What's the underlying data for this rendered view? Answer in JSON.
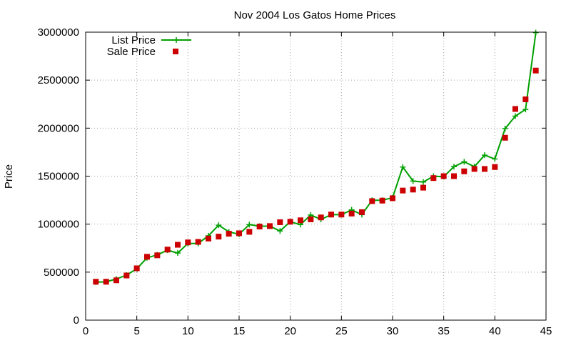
{
  "chart_data": {
    "type": "line",
    "title": "Nov 2004 Los Gatos Home Prices",
    "xlabel": "",
    "ylabel": "Price",
    "xlim": [
      0,
      45
    ],
    "ylim": [
      0,
      3000000
    ],
    "x_ticks": [
      "0",
      "5",
      "10",
      "15",
      "20",
      "25",
      "30",
      "35",
      "40",
      "45"
    ],
    "y_ticks": [
      "0",
      "500000",
      "1000000",
      "1500000",
      "2000000",
      "2500000",
      "3000000"
    ],
    "grid": true,
    "legend_position": "top-left",
    "series": [
      {
        "name": "List Price",
        "style": "line-points",
        "color": "#00a000",
        "x": [
          1,
          2,
          3,
          4,
          5,
          6,
          7,
          8,
          9,
          10,
          11,
          12,
          13,
          14,
          15,
          16,
          17,
          18,
          19,
          20,
          21,
          22,
          23,
          24,
          25,
          26,
          27,
          28,
          29,
          30,
          31,
          32,
          33,
          34,
          35,
          36,
          37,
          38,
          39,
          40,
          41,
          42,
          43,
          44
        ],
        "values": [
          395000,
          399000,
          429000,
          469000,
          535000,
          649000,
          680000,
          729000,
          699000,
          799000,
          799000,
          879000,
          989000,
          919000,
          895000,
          995000,
          979000,
          979000,
          929000,
          1025000,
          995000,
          1095000,
          1049000,
          1099000,
          1099000,
          1149000,
          1099000,
          1249000,
          1249000,
          1275000,
          1595000,
          1449000,
          1439000,
          1499000,
          1495000,
          1599000,
          1649000,
          1599000,
          1719000,
          1679000,
          1995000,
          2125000,
          2195000,
          2995000
        ]
      },
      {
        "name": "Sale Price",
        "style": "points",
        "color": "#cc0000",
        "x": [
          1,
          2,
          3,
          4,
          5,
          6,
          7,
          8,
          9,
          10,
          11,
          12,
          13,
          14,
          15,
          16,
          17,
          18,
          19,
          20,
          21,
          22,
          23,
          24,
          25,
          26,
          27,
          28,
          29,
          30,
          31,
          32,
          33,
          34,
          35,
          36,
          37,
          38,
          39,
          40,
          41,
          42,
          43,
          44
        ],
        "values": [
          400000,
          400000,
          415000,
          465000,
          540000,
          660000,
          675000,
          735000,
          785000,
          810000,
          815000,
          850000,
          870000,
          900000,
          905000,
          920000,
          975000,
          980000,
          1020000,
          1025000,
          1040000,
          1050000,
          1070000,
          1100000,
          1100000,
          1110000,
          1125000,
          1240000,
          1245000,
          1270000,
          1350000,
          1360000,
          1380000,
          1480000,
          1500000,
          1500000,
          1550000,
          1575000,
          1575000,
          1595000,
          1900000,
          2200000,
          2300000,
          2600000
        ]
      }
    ]
  }
}
